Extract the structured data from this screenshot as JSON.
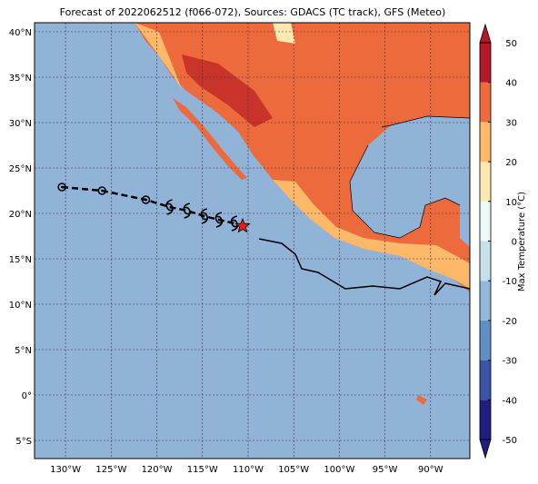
{
  "chart_data": {
    "type": "map",
    "title": "Forecast of 2022062512 (f066-072), Sources: GDACS (TC track), GFS (Meteo)",
    "xlim": [
      -133.4,
      -85.7
    ],
    "ylim": [
      -7,
      41
    ],
    "xticks": [
      {
        "value": -130,
        "label": "130°W"
      },
      {
        "value": -125,
        "label": "125°W"
      },
      {
        "value": -120,
        "label": "120°W"
      },
      {
        "value": -115,
        "label": "115°W"
      },
      {
        "value": -110,
        "label": "110°W"
      },
      {
        "value": -105,
        "label": "105°W"
      },
      {
        "value": -100,
        "label": "100°W"
      },
      {
        "value": -95,
        "label": "95°W"
      },
      {
        "value": -90,
        "label": "90°W"
      }
    ],
    "yticks": [
      {
        "value": -5,
        "label": "5°S"
      },
      {
        "value": 0,
        "label": "0°"
      },
      {
        "value": 5,
        "label": "5°N"
      },
      {
        "value": 10,
        "label": "10°N"
      },
      {
        "value": 15,
        "label": "15°N"
      },
      {
        "value": 20,
        "label": "20°N"
      },
      {
        "value": 25,
        "label": "25°N"
      },
      {
        "value": 30,
        "label": "30°N"
      },
      {
        "value": 35,
        "label": "35°N"
      },
      {
        "value": 40,
        "label": "40°N"
      }
    ],
    "grid": true,
    "colorbar": {
      "label": "Max Temperature (°C)",
      "ticks": [
        -50,
        -40,
        -30,
        -20,
        -10,
        0,
        10,
        20,
        30,
        40,
        50
      ],
      "colors": [
        "#1f1f80",
        "#3a55a5",
        "#5f8fc4",
        "#92b9da",
        "#c6e1ee",
        "#eef8f6",
        "#fde8b0",
        "#fdb86a",
        "#ec6a3c",
        "#b3182b"
      ]
    },
    "track": {
      "past": {
        "lon": [
          -130.4,
          -126,
          -121.2
        ],
        "lat": [
          22.9,
          22.5,
          21.5
        ]
      },
      "forecast": {
        "lon": [
          -118.6,
          -116.7,
          -114.8,
          -113.2,
          -111.5
        ],
        "lat": [
          20.7,
          20.3,
          19.7,
          19.3,
          18.9
        ]
      },
      "current": {
        "lon": -110.6,
        "lat": 18.6
      }
    }
  }
}
